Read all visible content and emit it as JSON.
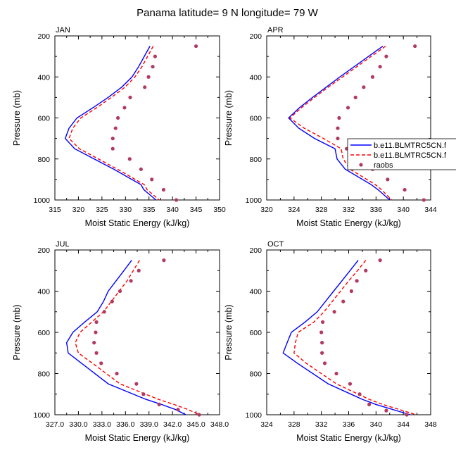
{
  "figure_title": "Panama  latitude= 9 N longitude= 79 W",
  "colors": {
    "model1": "#0000ff",
    "model2": "#ff0000",
    "raobs": "#b03a60"
  },
  "legend": {
    "panel": "APR",
    "entries": [
      {
        "label": "b.e11.BLMTRC5CN.f",
        "style": "solid-blue"
      },
      {
        "label": "b.e11.BLMTRC5CN.f",
        "style": "dashed-red"
      },
      {
        "label": "raobs",
        "style": "dot"
      }
    ]
  },
  "chart_data": [
    {
      "type": "line",
      "title": "JAN",
      "xlabel": "Moist Static Energy (kJ/kg)",
      "ylabel": "Pressure (mb)",
      "xlim": [
        315,
        350
      ],
      "ylim": [
        1000,
        200
      ],
      "xticks": [
        "315",
        "320",
        "325",
        "330",
        "335",
        "340",
        "345",
        "350"
      ],
      "yticks": [
        "200",
        "400",
        "600",
        "800",
        "1000"
      ],
      "y": [
        250,
        300,
        350,
        400,
        450,
        500,
        550,
        600,
        650,
        700,
        750,
        850,
        925,
        950,
        1000
      ],
      "series": [
        {
          "name": "b.e11.BLMTRC5CN.f",
          "style": "solid",
          "x": [
            335.2,
            334.0,
            332.8,
            331.4,
            329.2,
            326.3,
            323.1,
            319.7,
            318.0,
            317.2,
            319.2,
            327.5,
            333.3,
            333.9,
            336.5
          ]
        },
        {
          "name": "b.e11.BLMTRC5CN.f",
          "style": "dashed",
          "x": [
            335.9,
            334.7,
            333.5,
            332.0,
            329.9,
            327.0,
            323.9,
            320.5,
            318.8,
            318.0,
            320.2,
            328.3,
            334.0,
            334.6,
            337.2
          ]
        },
        {
          "name": "raobs",
          "style": "points",
          "x": [
            345.0,
            336.3,
            335.8,
            334.9,
            334.1,
            331.0,
            329.8,
            328.4,
            327.9,
            327.3,
            327.3,
            330.9,
            333.3,
            335.6,
            338.1,
            340.8
          ],
          "y_points": [
            250,
            300,
            350,
            400,
            450,
            500,
            550,
            600,
            650,
            700,
            750,
            800,
            850,
            900,
            950,
            1000
          ]
        }
      ]
    },
    {
      "type": "line",
      "title": "APR",
      "xlabel": "Moist Static Energy (kJ/kg)",
      "ylabel": "Pressure (mb)",
      "xlim": [
        320,
        344
      ],
      "ylim": [
        1000,
        200
      ],
      "xticks": [
        "320",
        "324",
        "328",
        "332",
        "336",
        "340",
        "344"
      ],
      "yticks": [
        "200",
        "400",
        "600",
        "800",
        "1000"
      ],
      "y": [
        250,
        300,
        350,
        400,
        450,
        500,
        550,
        600,
        650,
        700,
        750,
        800,
        850,
        925,
        950,
        1000
      ],
      "series": [
        {
          "name": "b.e11.BLMTRC5CN.f",
          "style": "solid",
          "x": [
            337.0,
            334.9,
            332.8,
            330.7,
            328.7,
            326.7,
            324.8,
            323.2,
            324.7,
            327.0,
            330.0,
            330.3,
            331.5,
            335.3,
            336.3,
            338.0
          ]
        },
        {
          "name": "b.e11.BLMTRC5CN.f",
          "style": "dashed",
          "x": [
            337.4,
            335.3,
            333.2,
            331.1,
            329.0,
            327.0,
            325.1,
            323.4,
            325.5,
            328.3,
            330.9,
            331.2,
            332.2,
            335.9,
            336.8,
            338.3
          ]
        },
        {
          "name": "raobs",
          "style": "points",
          "x": [
            341.7,
            337.5,
            336.6,
            335.5,
            334.2,
            333.0,
            331.9,
            330.6,
            330.4,
            330.4,
            331.7,
            333.8,
            335.5,
            337.7,
            340.2,
            343.0
          ],
          "y_points": [
            250,
            300,
            350,
            400,
            450,
            500,
            550,
            600,
            650,
            700,
            750,
            800,
            850,
            900,
            950,
            1000
          ]
        }
      ]
    },
    {
      "type": "line",
      "title": "JUL",
      "xlabel": "Moist Static Energy (kJ/kg)",
      "ylabel": "Pressure (mb)",
      "xlim": [
        327,
        348
      ],
      "ylim": [
        1000,
        200
      ],
      "xticks": [
        "327.0",
        "330.0",
        "333.0",
        "336.0",
        "339.0",
        "342.0",
        "345.0",
        "348.0"
      ],
      "yticks": [
        "200",
        "400",
        "600",
        "800",
        "1000"
      ],
      "y": [
        250,
        300,
        350,
        400,
        450,
        500,
        550,
        600,
        650,
        700,
        750,
        850,
        925,
        950,
        975,
        1000
      ],
      "series": [
        {
          "name": "b.e11.BLMTRC5CN.f",
          "style": "solid",
          "x": [
            336.8,
            335.8,
            334.8,
            333.8,
            333.2,
            332.4,
            330.8,
            329.3,
            328.5,
            328.7,
            330.4,
            333.8,
            338.6,
            340.6,
            342.4,
            343.7
          ]
        },
        {
          "name": "b.e11.BLMTRC5CN.f",
          "style": "dashed",
          "x": [
            337.8,
            337.0,
            336.2,
            335.2,
            334.2,
            333.2,
            331.7,
            330.2,
            329.6,
            330.0,
            331.8,
            335.3,
            340.2,
            342.2,
            344.0,
            345.5
          ]
        },
        {
          "name": "raobs",
          "style": "points",
          "x": [
            340.9,
            337.7,
            336.7,
            335.3,
            334.3,
            333.3,
            332.3,
            332.2,
            332.0,
            332.3,
            332.9,
            334.9,
            337.4,
            338.3,
            340.3,
            342.7,
            345.4
          ],
          "y_points": [
            250,
            300,
            350,
            400,
            450,
            500,
            550,
            600,
            650,
            700,
            750,
            800,
            850,
            900,
            950,
            975,
            1000
          ]
        }
      ]
    },
    {
      "type": "line",
      "title": "OCT",
      "xlabel": "Moist Static Energy (kJ/kg)",
      "ylabel": "Pressure (mb)",
      "xlim": [
        324,
        348
      ],
      "ylim": [
        1000,
        200
      ],
      "xticks": [
        "324",
        "328",
        "332",
        "336",
        "340",
        "344",
        "348"
      ],
      "yticks": [
        "200",
        "400",
        "600",
        "800",
        "1000"
      ],
      "y": [
        250,
        300,
        350,
        400,
        450,
        500,
        550,
        600,
        650,
        700,
        750,
        850,
        925,
        950,
        1000
      ],
      "series": [
        {
          "name": "b.e11.BLMTRC5CN.f",
          "style": "solid",
          "x": [
            337.4,
            336.2,
            335.0,
            333.8,
            332.6,
            331.4,
            329.6,
            327.6,
            327.0,
            326.4,
            328.5,
            333.0,
            338.0,
            340.0,
            345.0
          ]
        },
        {
          "name": "b.e11.BLMTRC5CN.f",
          "style": "dashed",
          "x": [
            338.5,
            337.3,
            336.0,
            334.8,
            333.6,
            332.4,
            330.9,
            328.6,
            328.2,
            328.0,
            329.8,
            334.2,
            339.0,
            341.0,
            345.9
          ]
        },
        {
          "name": "raobs",
          "style": "points",
          "x": [
            340.6,
            338.5,
            337.2,
            336.4,
            335.2,
            333.9,
            332.2,
            332.0,
            332.1,
            332.1,
            332.5,
            334.2,
            336.2,
            337.6,
            339.0,
            341.5,
            344.5
          ],
          "y_points": [
            250,
            300,
            350,
            400,
            450,
            500,
            550,
            600,
            650,
            700,
            750,
            800,
            850,
            900,
            950,
            980,
            1000
          ]
        }
      ]
    }
  ]
}
